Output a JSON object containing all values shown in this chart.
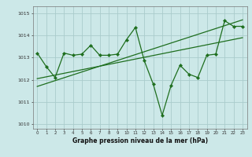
{
  "title": "",
  "xlabel": "Graphe pression niveau de la mer (hPa)",
  "bg_color": "#cce8e8",
  "grid_color": "#aacccc",
  "line_color": "#1e6e1e",
  "marker_color": "#1e6e1e",
  "x": [
    0,
    1,
    2,
    3,
    4,
    5,
    6,
    7,
    8,
    9,
    10,
    11,
    12,
    13,
    14,
    15,
    16,
    17,
    18,
    19,
    20,
    21,
    22,
    23
  ],
  "y_main": [
    1013.2,
    1012.6,
    1012.1,
    1013.2,
    1013.1,
    1013.15,
    1013.55,
    1013.1,
    1013.1,
    1013.15,
    1013.8,
    1014.35,
    1012.85,
    1011.8,
    1010.4,
    1011.75,
    1012.65,
    1012.25,
    1012.1,
    1013.1,
    1013.15,
    1014.65,
    1014.4,
    1014.4
  ],
  "y_trend1": [
    1012.05,
    1012.13,
    1012.21,
    1012.29,
    1012.37,
    1012.45,
    1012.53,
    1012.61,
    1012.69,
    1012.77,
    1012.85,
    1012.93,
    1013.01,
    1013.09,
    1013.17,
    1013.25,
    1013.33,
    1013.41,
    1013.49,
    1013.57,
    1013.65,
    1013.73,
    1013.81,
    1013.89
  ],
  "y_trend2": [
    1011.7,
    1011.83,
    1011.96,
    1012.09,
    1012.22,
    1012.35,
    1012.48,
    1012.61,
    1012.74,
    1012.87,
    1013.0,
    1013.13,
    1013.26,
    1013.39,
    1013.52,
    1013.65,
    1013.78,
    1013.91,
    1014.04,
    1014.17,
    1014.3,
    1014.43,
    1014.56,
    1014.69
  ],
  "ylim": [
    1009.8,
    1015.3
  ],
  "yticks": [
    1010,
    1011,
    1012,
    1013,
    1014,
    1015
  ],
  "xticks": [
    0,
    1,
    2,
    3,
    4,
    5,
    6,
    7,
    8,
    9,
    10,
    11,
    12,
    13,
    14,
    15,
    16,
    17,
    18,
    19,
    20,
    21,
    22,
    23
  ]
}
